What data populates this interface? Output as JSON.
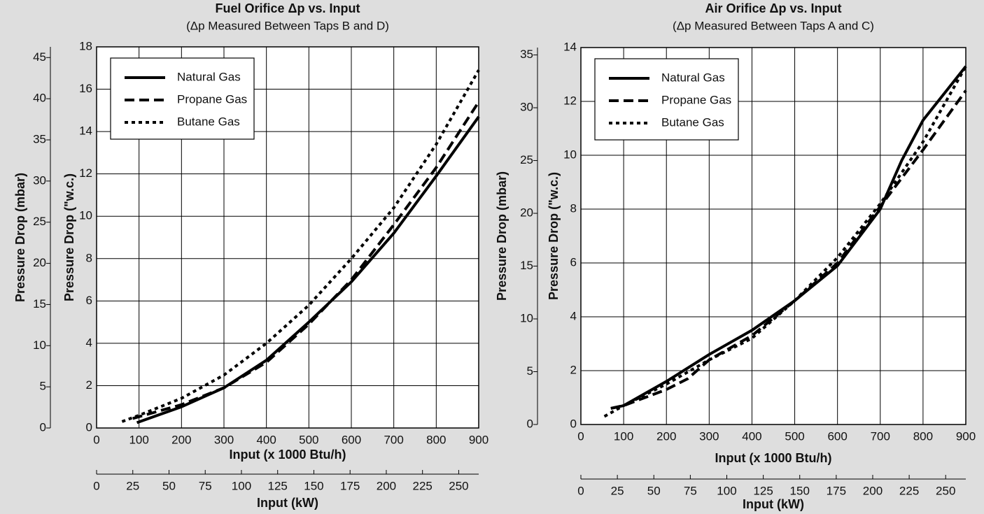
{
  "chart_data": [
    {
      "type": "line",
      "title": "Fuel Orifice Δp vs. Input",
      "subtitle": "(Δp Measured Between Taps B and D)",
      "x_label": "Input (x 1000 Btu/h)",
      "x2_label": "Input (kW)",
      "y_label": "Pressure Drop (\"w.c.)",
      "y2_label": "Pressure Drop (mbar)",
      "xlim": [
        0,
        900
      ],
      "xticks": [
        0,
        100,
        200,
        300,
        400,
        500,
        600,
        700,
        800,
        900
      ],
      "ylim": [
        0,
        18
      ],
      "yticks": [
        0,
        2,
        4,
        6,
        8,
        10,
        12,
        14,
        16,
        18
      ],
      "y2lim": [
        0,
        46.3
      ],
      "y2ticks": [
        0,
        5,
        10,
        15,
        20,
        25,
        30,
        35,
        40,
        45
      ],
      "x2lim": [
        0,
        263.8
      ],
      "x2ticks": [
        0,
        25,
        50,
        75,
        100,
        125,
        150,
        175,
        200,
        225,
        250
      ],
      "grid": true,
      "legend": "upper left",
      "series": [
        {
          "name": "Natural Gas",
          "color": "#000000",
          "style": "solid",
          "x": [
            95,
            200,
            300,
            400,
            500,
            600,
            700,
            800,
            900
          ],
          "values": [
            0.25,
            1.0,
            1.9,
            3.2,
            5.0,
            6.9,
            9.2,
            11.9,
            14.7
          ]
        },
        {
          "name": "Propane Gas",
          "color": "#000000",
          "style": "dashed",
          "x": [
            85,
            200,
            300,
            400,
            500,
            600,
            700,
            800,
            900
          ],
          "values": [
            0.45,
            1.1,
            1.9,
            3.1,
            4.9,
            7.0,
            9.6,
            12.3,
            15.4
          ]
        },
        {
          "name": "Butane Gas",
          "color": "#000000",
          "style": "dotted",
          "x": [
            60,
            100,
            200,
            300,
            400,
            500,
            600,
            700,
            800,
            900
          ],
          "values": [
            0.3,
            0.6,
            1.4,
            2.5,
            4.0,
            5.8,
            8.0,
            10.4,
            13.4,
            16.9
          ]
        }
      ]
    },
    {
      "type": "line",
      "title": "Air Orifice Δp vs. Input",
      "subtitle": "(Δp Measured Between Taps A and C)",
      "x_label": "Input (x 1000 Btu/h)",
      "x2_label": "Input (kW)",
      "y_label": "Pressure Drop (\"w.c.)",
      "y2_label": "Pressure Drop (mbar)",
      "xlim": [
        0,
        900
      ],
      "xticks": [
        0,
        100,
        200,
        300,
        400,
        500,
        600,
        700,
        800,
        900
      ],
      "ylim": [
        0,
        14
      ],
      "yticks": [
        0,
        2,
        4,
        6,
        8,
        10,
        12,
        14
      ],
      "y2lim": [
        0,
        35.7
      ],
      "y2ticks": [
        0,
        5,
        10,
        15,
        20,
        25,
        30,
        35
      ],
      "x2lim": [
        0,
        263.8
      ],
      "x2ticks": [
        0,
        25,
        50,
        75,
        100,
        125,
        150,
        175,
        200,
        225,
        250
      ],
      "grid": true,
      "legend": "upper left",
      "series": [
        {
          "name": "Natural Gas",
          "color": "#000000",
          "style": "solid",
          "x": [
            70,
            100,
            200,
            300,
            400,
            500,
            600,
            700,
            750,
            800,
            900
          ],
          "values": [
            0.6,
            0.7,
            1.6,
            2.6,
            3.5,
            4.6,
            5.9,
            8.0,
            9.8,
            11.3,
            13.3
          ]
        },
        {
          "name": "Propane Gas",
          "color": "#000000",
          "style": "dashed",
          "x": [
            70,
            100,
            200,
            250,
            300,
            400,
            500,
            600,
            700,
            800,
            900
          ],
          "values": [
            0.6,
            0.7,
            1.3,
            1.7,
            2.4,
            3.3,
            4.6,
            6.0,
            8.1,
            10.2,
            12.4
          ]
        },
        {
          "name": "Butane Gas",
          "color": "#000000",
          "style": "dotted",
          "x": [
            55,
            100,
            200,
            300,
            400,
            500,
            600,
            700,
            800,
            900
          ],
          "values": [
            0.3,
            0.7,
            1.5,
            2.4,
            3.2,
            4.6,
            6.2,
            8.2,
            10.5,
            13.3
          ]
        }
      ]
    }
  ]
}
